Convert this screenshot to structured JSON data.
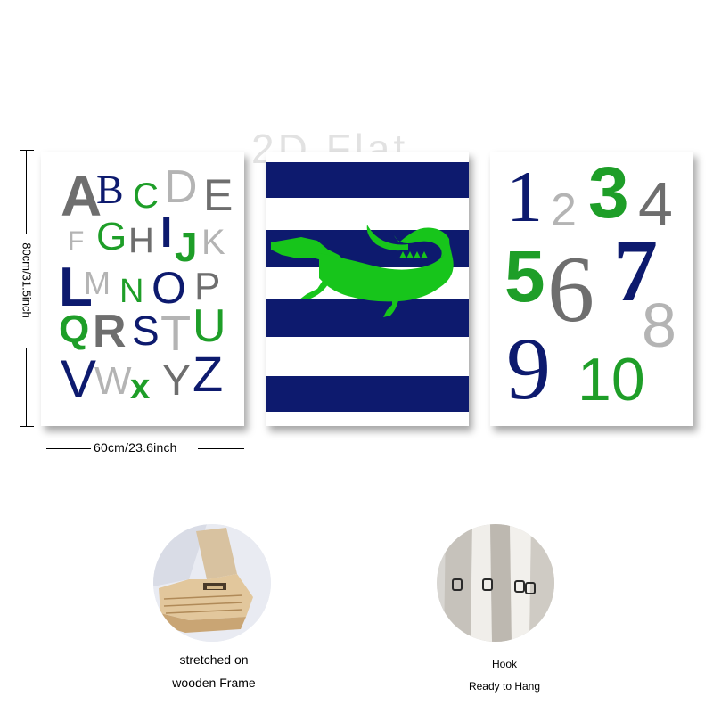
{
  "watermark": "2D Flat",
  "dimensions": {
    "width_label": "60cm/23.6inch",
    "height_label": "80cm/31.5inch"
  },
  "colors": {
    "navy": "#0d1a6e",
    "green": "#1e9e28",
    "gray": "#6e6e6e",
    "light_gray": "#b4b4b4",
    "croc_green": "#17c51b"
  },
  "panels": {
    "alphabet": {
      "letters": [
        "A",
        "B",
        "C",
        "D",
        "E",
        "F",
        "G",
        "H",
        "I",
        "J",
        "K",
        "L",
        "M",
        "N",
        "O",
        "P",
        "Q",
        "R",
        "S",
        "T",
        "U",
        "V",
        "W",
        "x",
        "Y",
        "Z"
      ]
    },
    "crocodile": {
      "icon": "crocodile-icon"
    },
    "numbers": {
      "digits": [
        "1",
        "2",
        "3",
        "4",
        "5",
        "6",
        "7",
        "8",
        "9",
        "10"
      ]
    }
  },
  "features": [
    {
      "icon": "wooden-frame-icon",
      "line1": "stretched on",
      "line2": "wooden Frame"
    },
    {
      "icon": "hook-icon",
      "line1": "Hook",
      "line2": "Ready to Hang"
    }
  ]
}
